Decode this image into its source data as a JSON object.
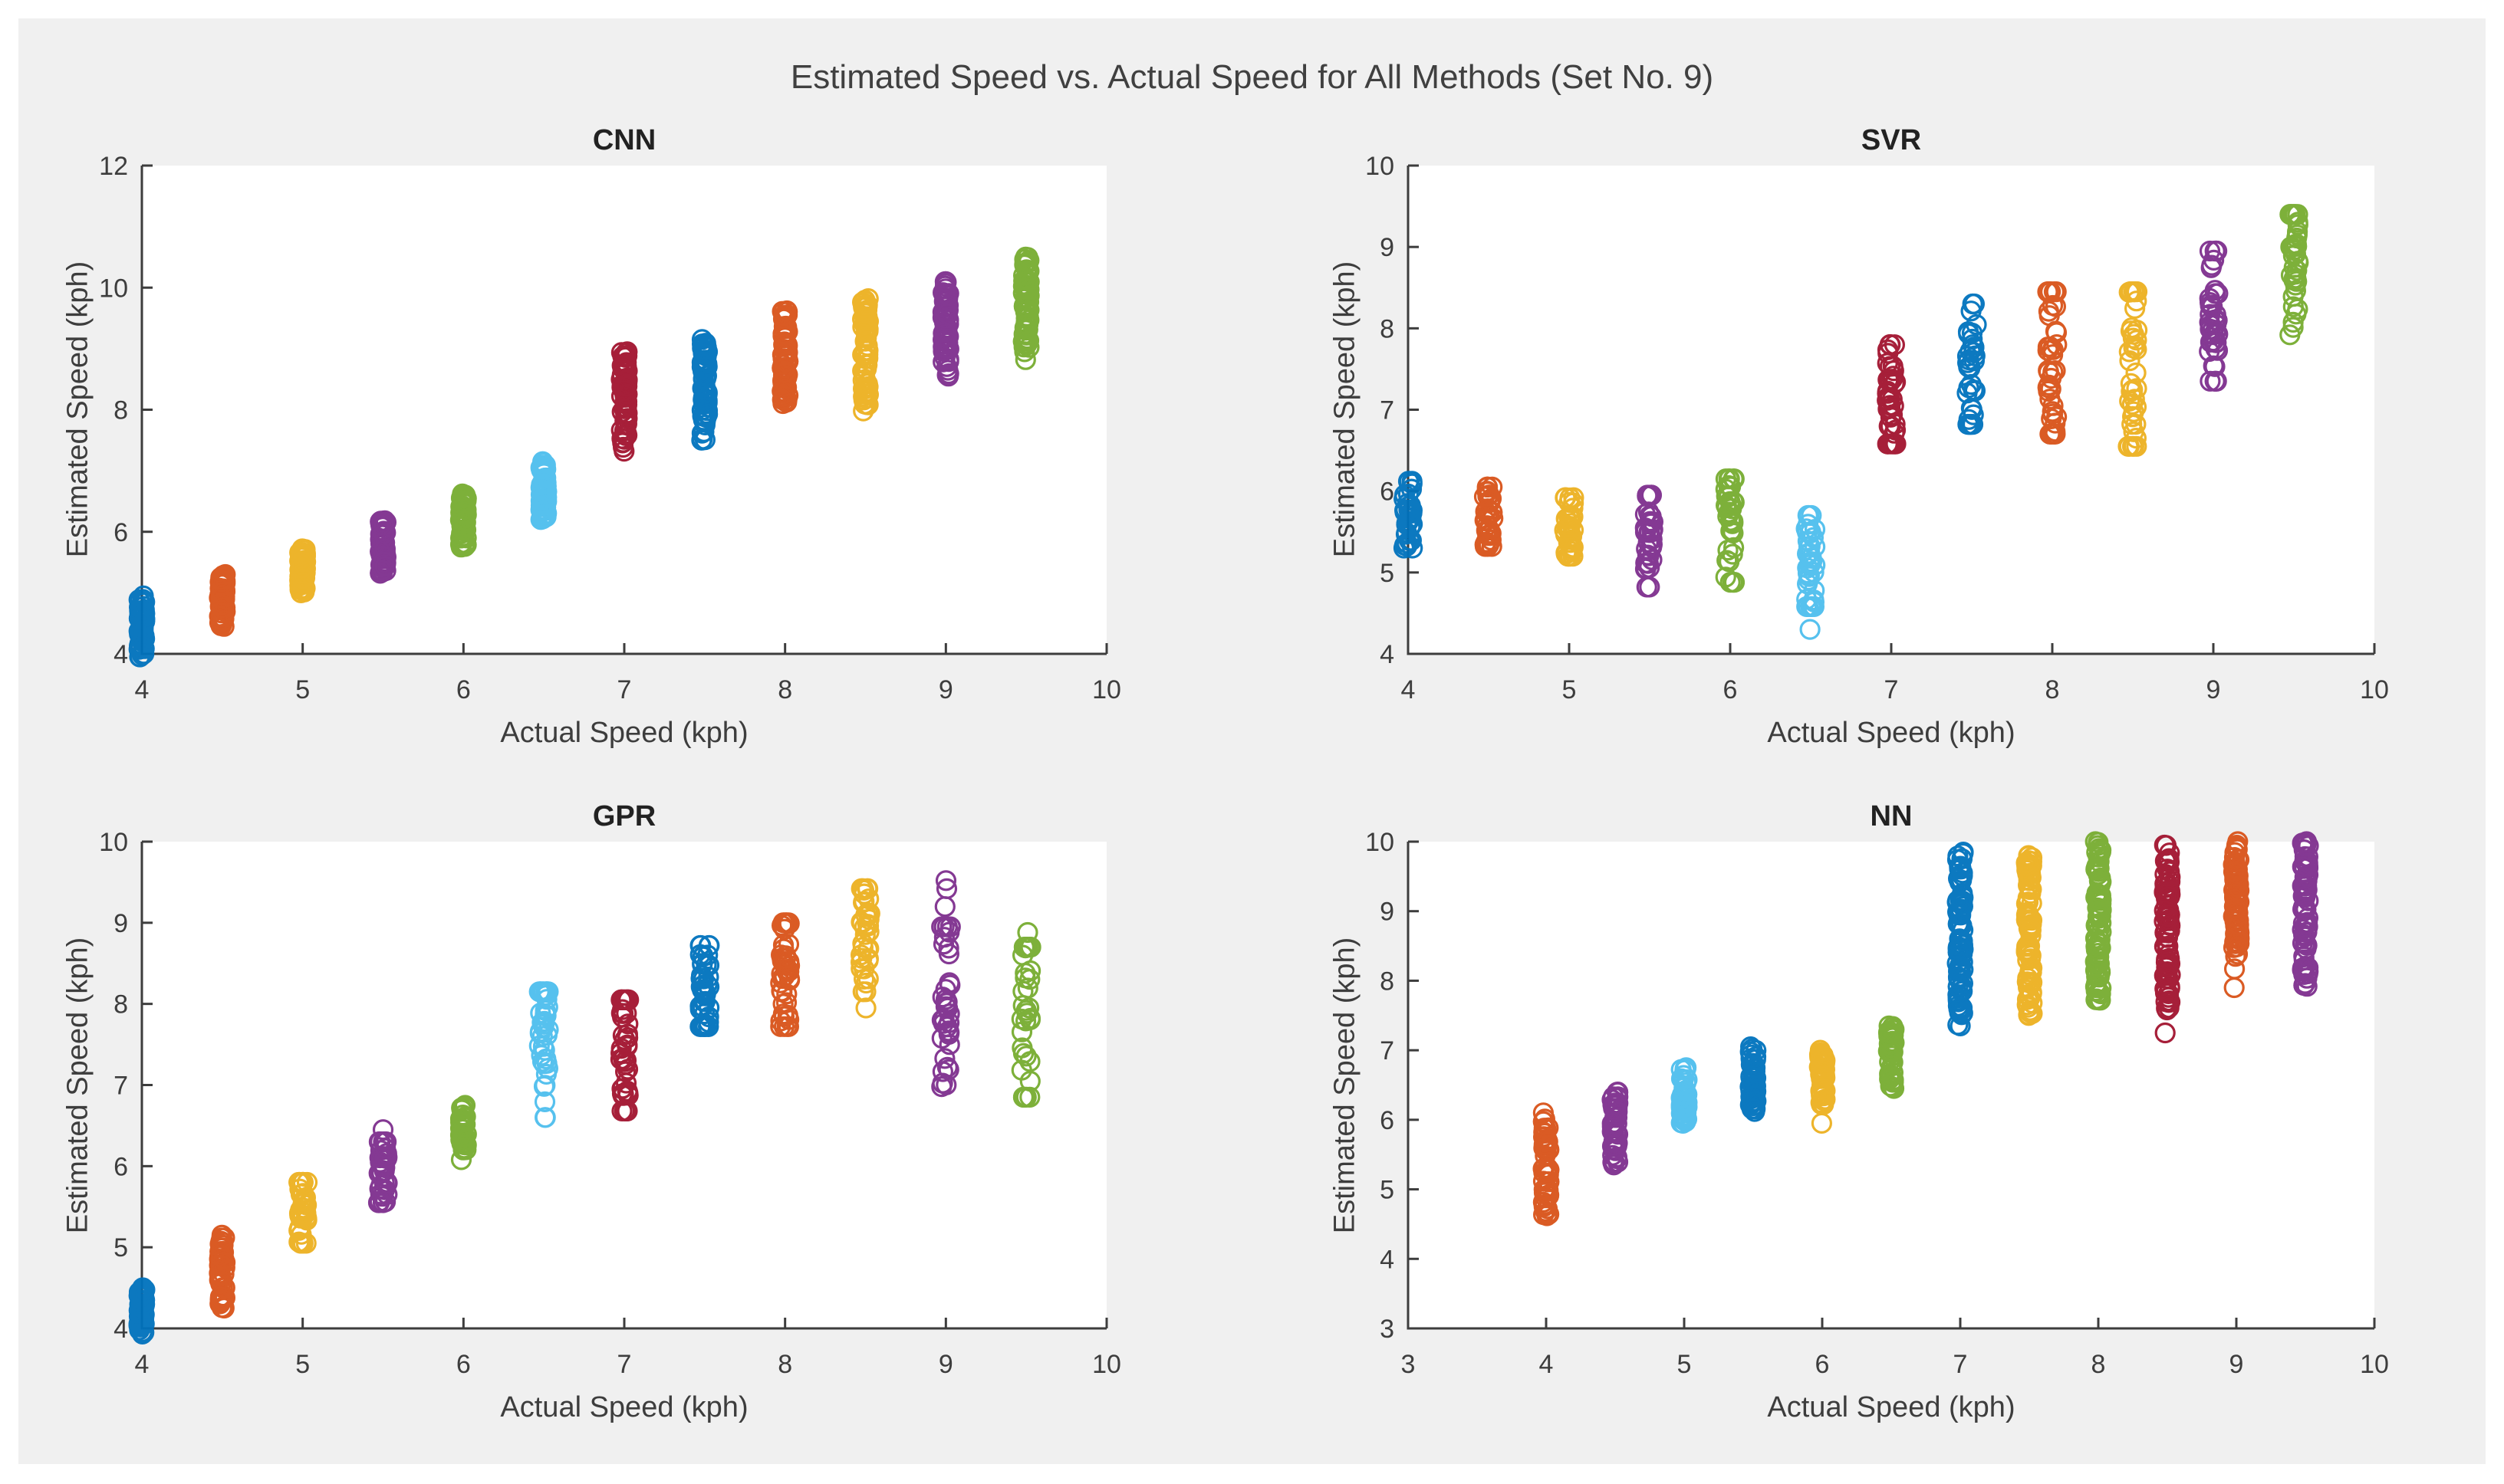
{
  "figure": {
    "title": "Estimated Speed vs. Actual Speed for All Methods (Set No. 9)",
    "background": "#F0F0F0",
    "plot_background": "#FFFFFF",
    "axis_color": "#3d3d3d",
    "text_color": "#404040"
  },
  "palette": {
    "blue": "#0072BD",
    "orange": "#D95319",
    "yellow": "#EDB120",
    "purple": "#7E2F8E",
    "green": "#77AC30",
    "cyan": "#4DBEEE",
    "darkred": "#A2142F"
  },
  "chart_data": [
    {
      "type": "scatter",
      "title": "CNN",
      "xlabel": "Actual Speed (kph)",
      "ylabel": "Estimated Speed (kph)",
      "xlim": [
        4,
        10
      ],
      "ylim": [
        4,
        12
      ],
      "xticks": [
        4,
        5,
        6,
        7,
        8,
        9,
        10
      ],
      "yticks": [
        4,
        6,
        8,
        10,
        12
      ],
      "marker": "open-circle",
      "grid": false,
      "legend": "none",
      "clusters": [
        {
          "x": 4.0,
          "color": "blue",
          "y": [
            3.95,
            4.95
          ],
          "n": 65,
          "dense": true,
          "outliers": []
        },
        {
          "x": 4.5,
          "color": "orange",
          "y": [
            4.45,
            5.3
          ],
          "n": 65,
          "dense": true,
          "outliers": []
        },
        {
          "x": 5.0,
          "color": "yellow",
          "y": [
            5.0,
            5.72
          ],
          "n": 65,
          "dense": true,
          "outliers": []
        },
        {
          "x": 5.5,
          "color": "purple",
          "y": [
            5.32,
            6.18
          ],
          "n": 65,
          "dense": true,
          "outliers": []
        },
        {
          "x": 6.0,
          "color": "green",
          "y": [
            5.75,
            6.62
          ],
          "n": 65,
          "dense": true,
          "outliers": []
        },
        {
          "x": 6.5,
          "color": "cyan",
          "y": [
            6.2,
            7.15
          ],
          "n": 65,
          "dense": true,
          "outliers": []
        },
        {
          "x": 7.0,
          "color": "darkred",
          "y": [
            7.32,
            8.95
          ],
          "n": 72,
          "dense": true,
          "outliers": []
        },
        {
          "x": 7.5,
          "color": "blue",
          "y": [
            7.5,
            9.15
          ],
          "n": 72,
          "dense": true,
          "outliers": []
        },
        {
          "x": 8.0,
          "color": "orange",
          "y": [
            8.1,
            9.62
          ],
          "n": 72,
          "dense": true,
          "outliers": []
        },
        {
          "x": 8.5,
          "color": "yellow",
          "y": [
            8.08,
            9.82
          ],
          "n": 72,
          "dense": true,
          "outliers": [
            7.98
          ]
        },
        {
          "x": 9.0,
          "color": "purple",
          "y": [
            8.55,
            10.1
          ],
          "n": 72,
          "dense": true,
          "outliers": []
        },
        {
          "x": 9.5,
          "color": "green",
          "y": [
            8.95,
            10.5
          ],
          "n": 72,
          "dense": true,
          "outliers": [
            8.82
          ]
        }
      ]
    },
    {
      "type": "scatter",
      "title": "SVR",
      "xlabel": "Actual Speed (kph)",
      "ylabel": "Estimated Speed (kph)",
      "xlim": [
        4,
        10
      ],
      "ylim": [
        4,
        10
      ],
      "xticks": [
        4,
        5,
        6,
        7,
        8,
        9,
        10
      ],
      "yticks": [
        4,
        5,
        6,
        7,
        8,
        9,
        10
      ],
      "marker": "open-circle",
      "grid": false,
      "legend": "none",
      "clusters": [
        {
          "x": 4.0,
          "color": "blue",
          "y": [
            5.3,
            6.12
          ],
          "n": 38,
          "dense": false,
          "outliers": []
        },
        {
          "x": 4.5,
          "color": "orange",
          "y": [
            5.32,
            6.05
          ],
          "n": 36,
          "dense": false,
          "outliers": []
        },
        {
          "x": 5.0,
          "color": "yellow",
          "y": [
            5.2,
            5.92
          ],
          "n": 36,
          "dense": false,
          "outliers": []
        },
        {
          "x": 5.5,
          "color": "purple",
          "y": [
            4.82,
            5.95
          ],
          "n": 38,
          "dense": false,
          "outliers": []
        },
        {
          "x": 6.0,
          "color": "green",
          "y": [
            4.88,
            6.15
          ],
          "n": 38,
          "dense": false,
          "outliers": []
        },
        {
          "x": 6.5,
          "color": "cyan",
          "y": [
            4.58,
            5.7
          ],
          "n": 40,
          "dense": false,
          "outliers": [
            4.3
          ]
        },
        {
          "x": 7.0,
          "color": "darkred",
          "y": [
            6.58,
            7.8
          ],
          "n": 40,
          "dense": false,
          "outliers": []
        },
        {
          "x": 7.5,
          "color": "blue",
          "y": [
            6.82,
            8.3
          ],
          "n": 40,
          "dense": false,
          "outliers": []
        },
        {
          "x": 8.0,
          "color": "orange",
          "y": [
            6.7,
            8.45
          ],
          "n": 42,
          "dense": false,
          "outliers": []
        },
        {
          "x": 8.5,
          "color": "yellow",
          "y": [
            6.55,
            8.45
          ],
          "n": 42,
          "dense": false,
          "outliers": []
        },
        {
          "x": 9.0,
          "color": "purple",
          "y": [
            7.35,
            8.95
          ],
          "n": 42,
          "dense": false,
          "outliers": []
        },
        {
          "x": 9.5,
          "color": "green",
          "y": [
            7.92,
            9.4
          ],
          "n": 40,
          "dense": false,
          "outliers": []
        }
      ]
    },
    {
      "type": "scatter",
      "title": "GPR",
      "xlabel": "Actual Speed (kph)",
      "ylabel": "Estimated Speed (kph)",
      "xlim": [
        4,
        10
      ],
      "ylim": [
        4,
        10
      ],
      "xticks": [
        4,
        5,
        6,
        7,
        8,
        9,
        10
      ],
      "yticks": [
        4,
        5,
        6,
        7,
        8,
        9,
        10
      ],
      "marker": "open-circle",
      "grid": false,
      "legend": "none",
      "clusters": [
        {
          "x": 4.0,
          "color": "blue",
          "y": [
            3.93,
            4.5
          ],
          "n": 55,
          "dense": true,
          "outliers": []
        },
        {
          "x": 4.5,
          "color": "orange",
          "y": [
            4.25,
            5.15
          ],
          "n": 48,
          "dense": true,
          "outliers": []
        },
        {
          "x": 5.0,
          "color": "yellow",
          "y": [
            5.05,
            5.8
          ],
          "n": 42,
          "dense": false,
          "outliers": []
        },
        {
          "x": 5.5,
          "color": "purple",
          "y": [
            5.55,
            6.3
          ],
          "n": 40,
          "dense": false,
          "outliers": [
            6.45
          ]
        },
        {
          "x": 6.0,
          "color": "green",
          "y": [
            6.2,
            6.75
          ],
          "n": 42,
          "dense": true,
          "outliers": [
            6.08
          ]
        },
        {
          "x": 6.5,
          "color": "cyan",
          "y": [
            6.6,
            8.15
          ],
          "n": 40,
          "dense": false,
          "outliers": []
        },
        {
          "x": 7.0,
          "color": "darkred",
          "y": [
            6.68,
            8.05
          ],
          "n": 45,
          "dense": false,
          "outliers": []
        },
        {
          "x": 7.5,
          "color": "blue",
          "y": [
            7.72,
            8.72
          ],
          "n": 45,
          "dense": false,
          "outliers": []
        },
        {
          "x": 8.0,
          "color": "orange",
          "y": [
            7.72,
            9.0
          ],
          "n": 45,
          "dense": false,
          "outliers": []
        },
        {
          "x": 8.5,
          "color": "yellow",
          "y": [
            8.15,
            9.42
          ],
          "n": 40,
          "dense": false,
          "outliers": [
            7.95
          ]
        },
        {
          "x": 9.0,
          "color": "purple",
          "y": [
            6.98,
            8.95
          ],
          "n": 36,
          "dense": false,
          "outliers": [
            9.2,
            9.42,
            9.52
          ]
        },
        {
          "x": 9.5,
          "color": "green",
          "y": [
            6.85,
            8.7
          ],
          "n": 34,
          "dense": false,
          "outliers": [
            8.88
          ]
        }
      ]
    },
    {
      "type": "scatter",
      "title": "NN",
      "xlabel": "Actual Speed (kph)",
      "ylabel": "Estimated Speed (kph)",
      "xlim": [
        3,
        10
      ],
      "ylim": [
        3,
        10
      ],
      "xticks": [
        3,
        4,
        5,
        6,
        7,
        8,
        9,
        10
      ],
      "yticks": [
        3,
        4,
        5,
        6,
        7,
        8,
        9,
        10
      ],
      "marker": "open-circle",
      "grid": false,
      "legend": "none",
      "clusters": [
        {
          "x": 4.0,
          "color": "orange",
          "y": [
            4.62,
            6.1
          ],
          "n": 55,
          "dense": true,
          "outliers": []
        },
        {
          "x": 4.5,
          "color": "purple",
          "y": [
            5.35,
            6.4
          ],
          "n": 55,
          "dense": true,
          "outliers": []
        },
        {
          "x": 5.0,
          "color": "cyan",
          "y": [
            5.95,
            6.75
          ],
          "n": 55,
          "dense": true,
          "outliers": []
        },
        {
          "x": 5.5,
          "color": "blue",
          "y": [
            6.12,
            7.05
          ],
          "n": 55,
          "dense": true,
          "outliers": []
        },
        {
          "x": 6.0,
          "color": "yellow",
          "y": [
            6.22,
            7.0
          ],
          "n": 50,
          "dense": true,
          "outliers": [
            5.95
          ]
        },
        {
          "x": 6.5,
          "color": "green",
          "y": [
            6.45,
            7.35
          ],
          "n": 55,
          "dense": true,
          "outliers": []
        },
        {
          "x": 7.0,
          "color": "blue",
          "y": [
            7.35,
            9.85
          ],
          "n": 88,
          "dense": true,
          "outliers": []
        },
        {
          "x": 7.5,
          "color": "yellow",
          "y": [
            7.5,
            9.8
          ],
          "n": 88,
          "dense": true,
          "outliers": []
        },
        {
          "x": 8.0,
          "color": "green",
          "y": [
            7.72,
            10.0
          ],
          "n": 88,
          "dense": true,
          "outliers": []
        },
        {
          "x": 8.5,
          "color": "darkred",
          "y": [
            7.58,
            9.95
          ],
          "n": 88,
          "dense": true,
          "outliers": [
            7.25
          ]
        },
        {
          "x": 9.0,
          "color": "orange",
          "y": [
            8.35,
            10.0
          ],
          "n": 82,
          "dense": true,
          "outliers": [
            7.9,
            8.17
          ]
        },
        {
          "x": 9.5,
          "color": "purple",
          "y": [
            7.92,
            10.0
          ],
          "n": 82,
          "dense": true,
          "outliers": []
        }
      ]
    }
  ]
}
